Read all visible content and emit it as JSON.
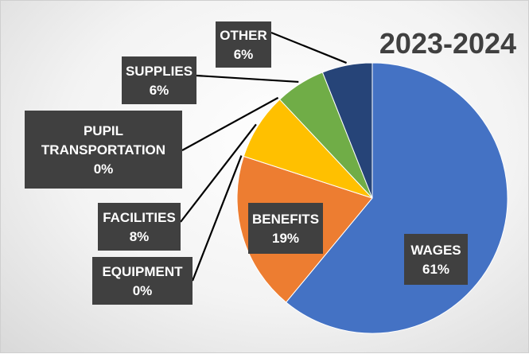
{
  "chart_data": {
    "type": "pie",
    "title": "2023-2024",
    "slices": [
      {
        "label": "WAGES",
        "value": 61,
        "display": "61%",
        "color": "#4472C4"
      },
      {
        "label": "BENEFITS",
        "value": 19,
        "display": "19%",
        "color": "#ED7D31"
      },
      {
        "label": "EQUIPMENT",
        "value": 0,
        "display": "0%",
        "color": "#A5A5A5"
      },
      {
        "label": "FACILITIES",
        "value": 8,
        "display": "8%",
        "color": "#FFC000"
      },
      {
        "label": "PUPIL TRANSPORTATION",
        "value": 0,
        "display": "0%",
        "color": "#5B9BD5"
      },
      {
        "label": "SUPPLIES",
        "value": 6,
        "display": "6%",
        "color": "#70AD47"
      },
      {
        "label": "OTHER",
        "value": 6,
        "display": "6%",
        "color": "#264478"
      }
    ],
    "start_angle_deg": 0,
    "direction": "clockwise",
    "data_labels": "callout boxes"
  }
}
